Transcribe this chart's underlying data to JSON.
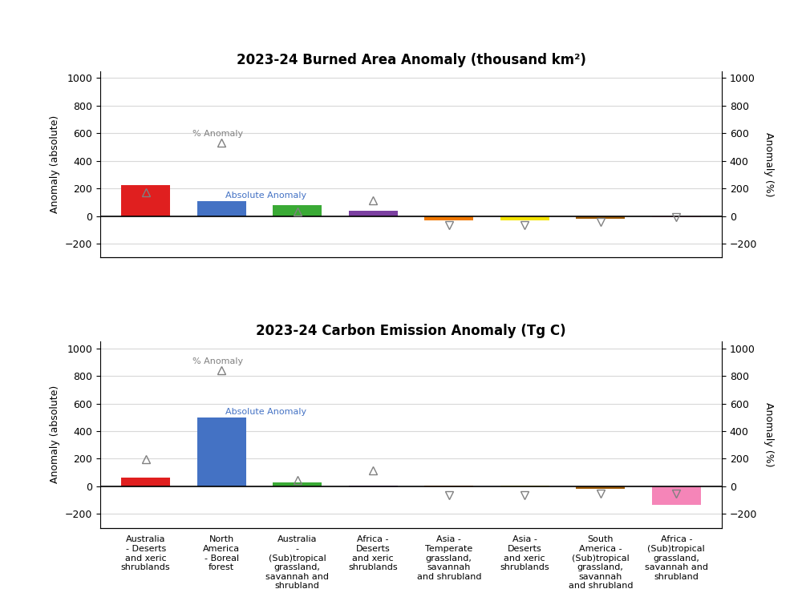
{
  "categories": [
    "Australia\n- Deserts\nand xeric\nshrublands",
    "North\nAmerica\n- Boreal\nforest",
    "Australia\n-\n(Sub)tropical\ngrassland,\nsavannah and\nshrubland",
    "Africa -\nDeserts\nand xeric\nshrublands",
    "Asia -\nTemperate\ngrassland,\nsavannah\nand shrubland",
    "Asia -\nDeserts\nand xeric\nshrublands",
    "South\nAmerica -\n(Sub)tropical\ngrassland,\nsavannah\nand shrubland",
    "Africa -\n(Sub)tropical\ngrassland,\nsavannah and\nshrubland"
  ],
  "burned_bars": [
    225,
    110,
    82,
    40,
    -28,
    -30,
    -22,
    -5
  ],
  "burned_pct": [
    175,
    530,
    35,
    115,
    -65,
    -65,
    -45,
    -5
  ],
  "carbon_bars": [
    65,
    500,
    28,
    5,
    5,
    5,
    -15,
    -135
  ],
  "carbon_pct": [
    195,
    840,
    45,
    115,
    -65,
    -65,
    -55,
    -55
  ],
  "bar_colors": [
    "#e01f1f",
    "#4472c4",
    "#3aaa35",
    "#7b3fa0",
    "#f07800",
    "#f5e500",
    "#9c5c0a",
    "#f585b8"
  ],
  "ylim": [
    -300,
    1050
  ],
  "yticks": [
    -200,
    0,
    200,
    400,
    600,
    800,
    1000
  ],
  "bg_color": "#ffffff",
  "grid_color": "#d8d8d8",
  "title1": "2023-24 Burned Area Anomaly (thousand km²)",
  "title2": "2023-24 Carbon Emission Anomaly (Tg C)",
  "ylabel_left": "Anomaly (absolute)",
  "ylabel_right": "Anomaly (%)",
  "label_absolute": "Absolute Anomaly",
  "label_pct": "% Anomaly",
  "triangle_color": "#808080"
}
